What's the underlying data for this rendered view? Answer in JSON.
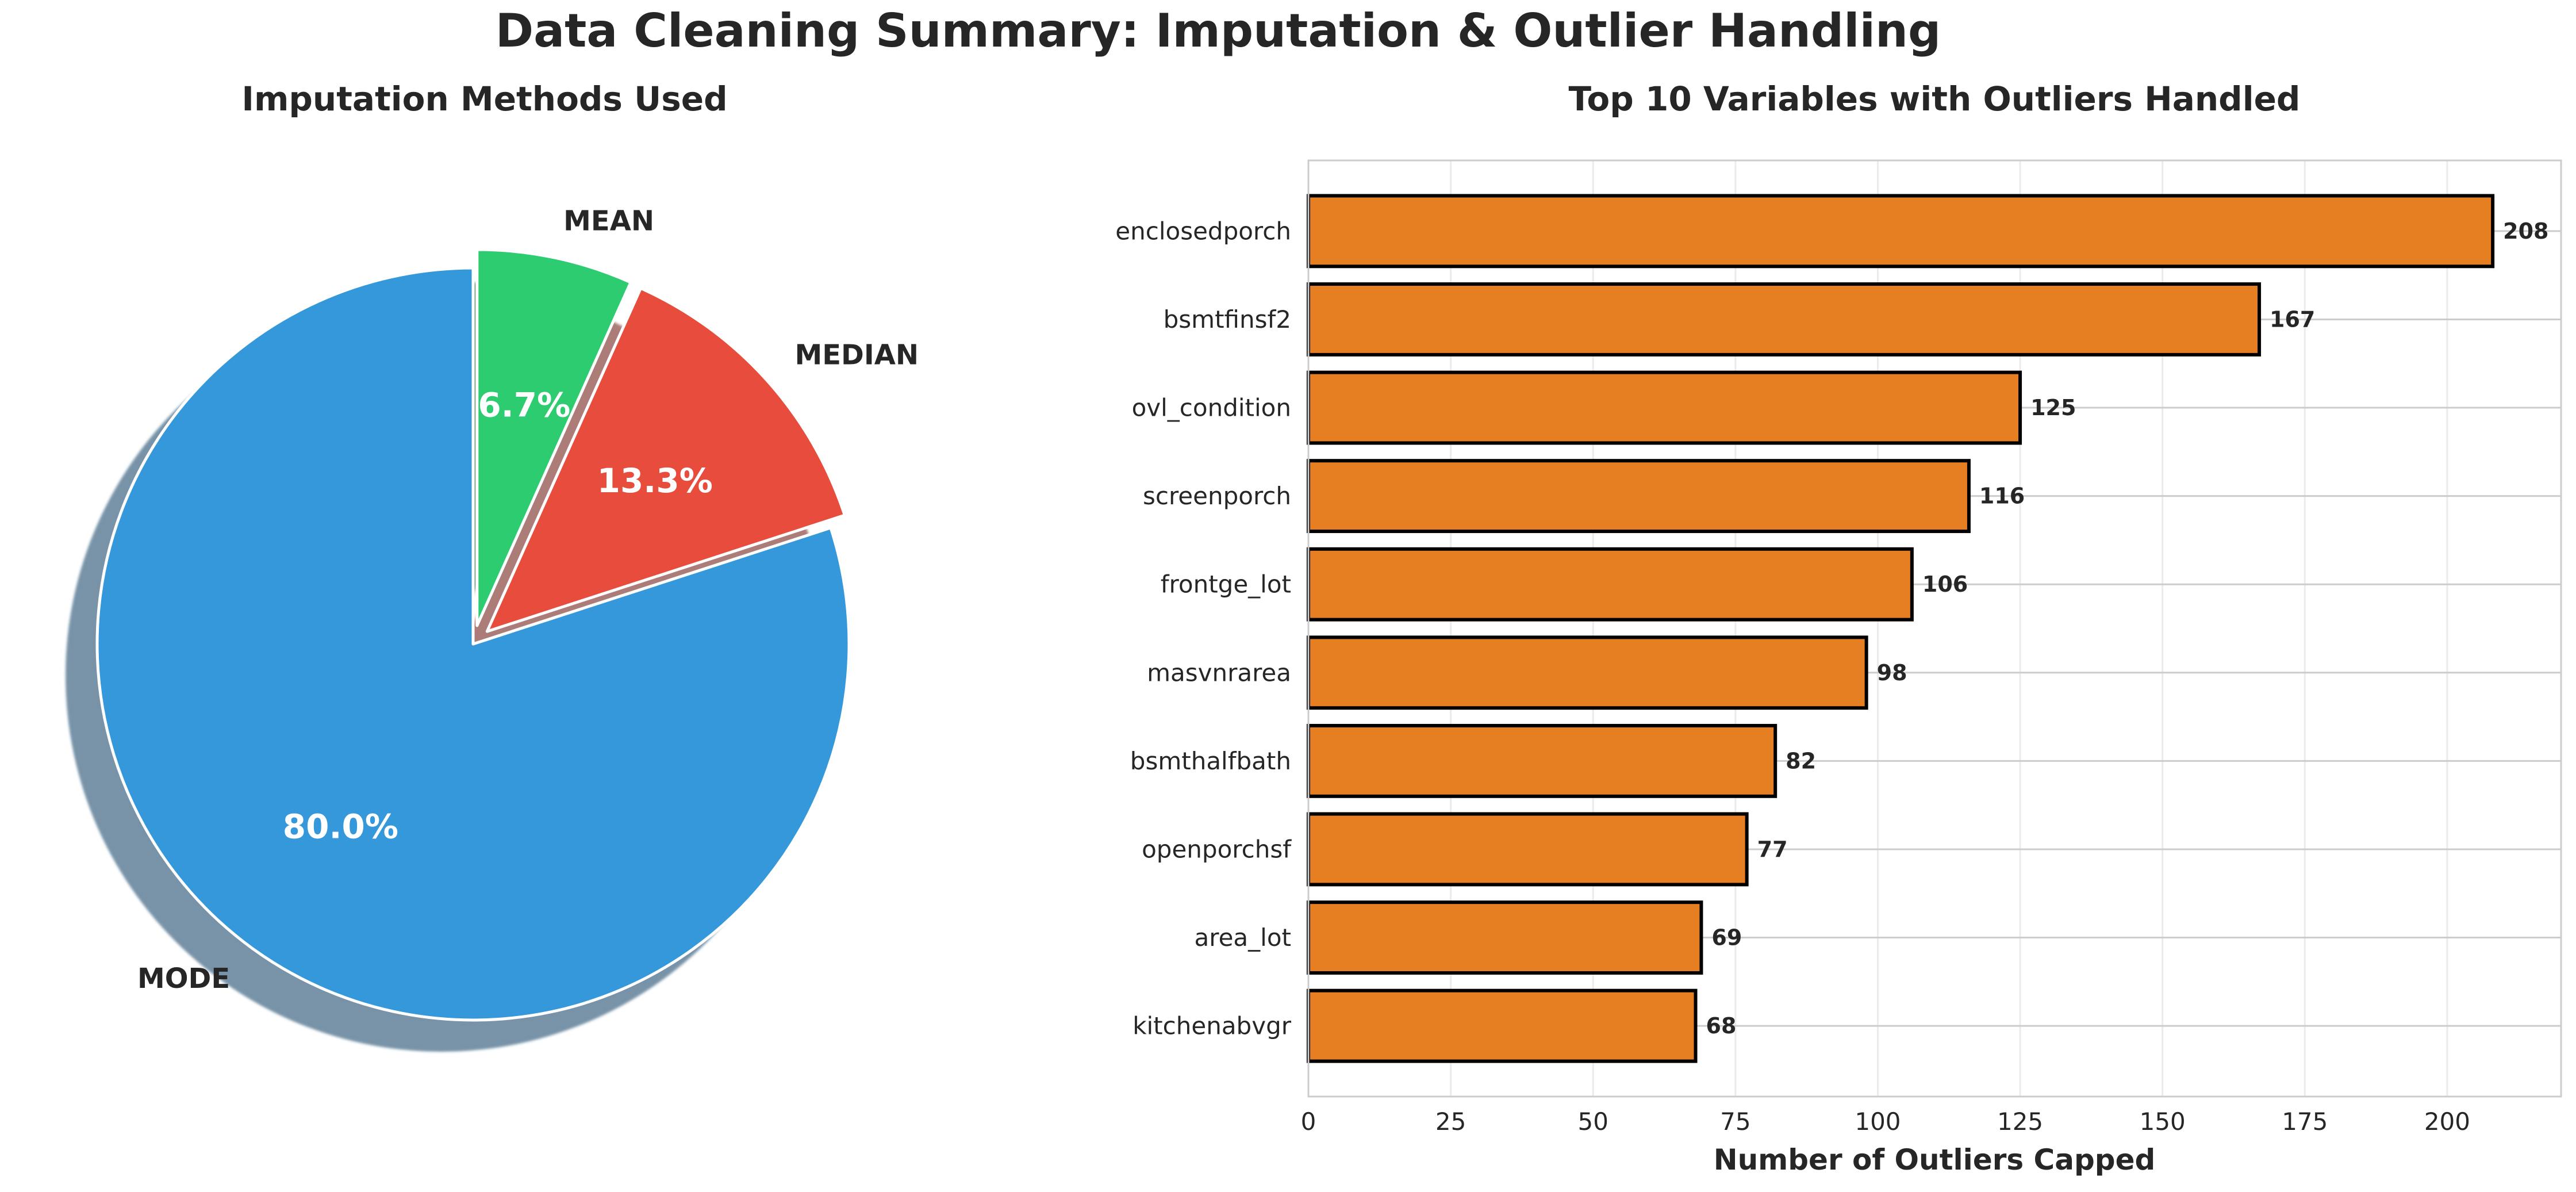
{
  "figure": {
    "title": "Data Cleaning Summary: Imputation & Outlier Handling"
  },
  "chart_data": [
    {
      "type": "pie",
      "title": "Imputation Methods Used",
      "labels": [
        "MODE",
        "MEDIAN",
        "MEAN"
      ],
      "values": [
        80.0,
        13.3,
        6.7
      ],
      "autopct": [
        "80.0%",
        "13.3%",
        "6.7%"
      ],
      "colors": [
        "#3498db",
        "#e74c3c",
        "#2ecc71"
      ],
      "explode": [
        0,
        0.05,
        0.05
      ],
      "shadow": true,
      "start_angle_deg": 90,
      "direction": "counterclockwise"
    },
    {
      "type": "bar",
      "orientation": "horizontal",
      "title": "Top 10 Variables with Outliers Handled",
      "xlabel": "Number of Outliers Capped",
      "ylabel": "",
      "categories": [
        "enclosedporch",
        "bsmtfinsf2",
        "ovl_condition",
        "screenporch",
        "frontge_lot",
        "masvnrarea",
        "bsmthalfbath",
        "openporchsf",
        "area_lot",
        "kitchenabvgr"
      ],
      "values": [
        208,
        167,
        125,
        116,
        106,
        98,
        82,
        77,
        69,
        68
      ],
      "xlim": [
        0,
        220
      ],
      "xticks": [
        0,
        25,
        50,
        75,
        100,
        125,
        150,
        175,
        200
      ],
      "bar_color": "#e67e22",
      "edge_color": "#000000",
      "grid": true
    }
  ]
}
